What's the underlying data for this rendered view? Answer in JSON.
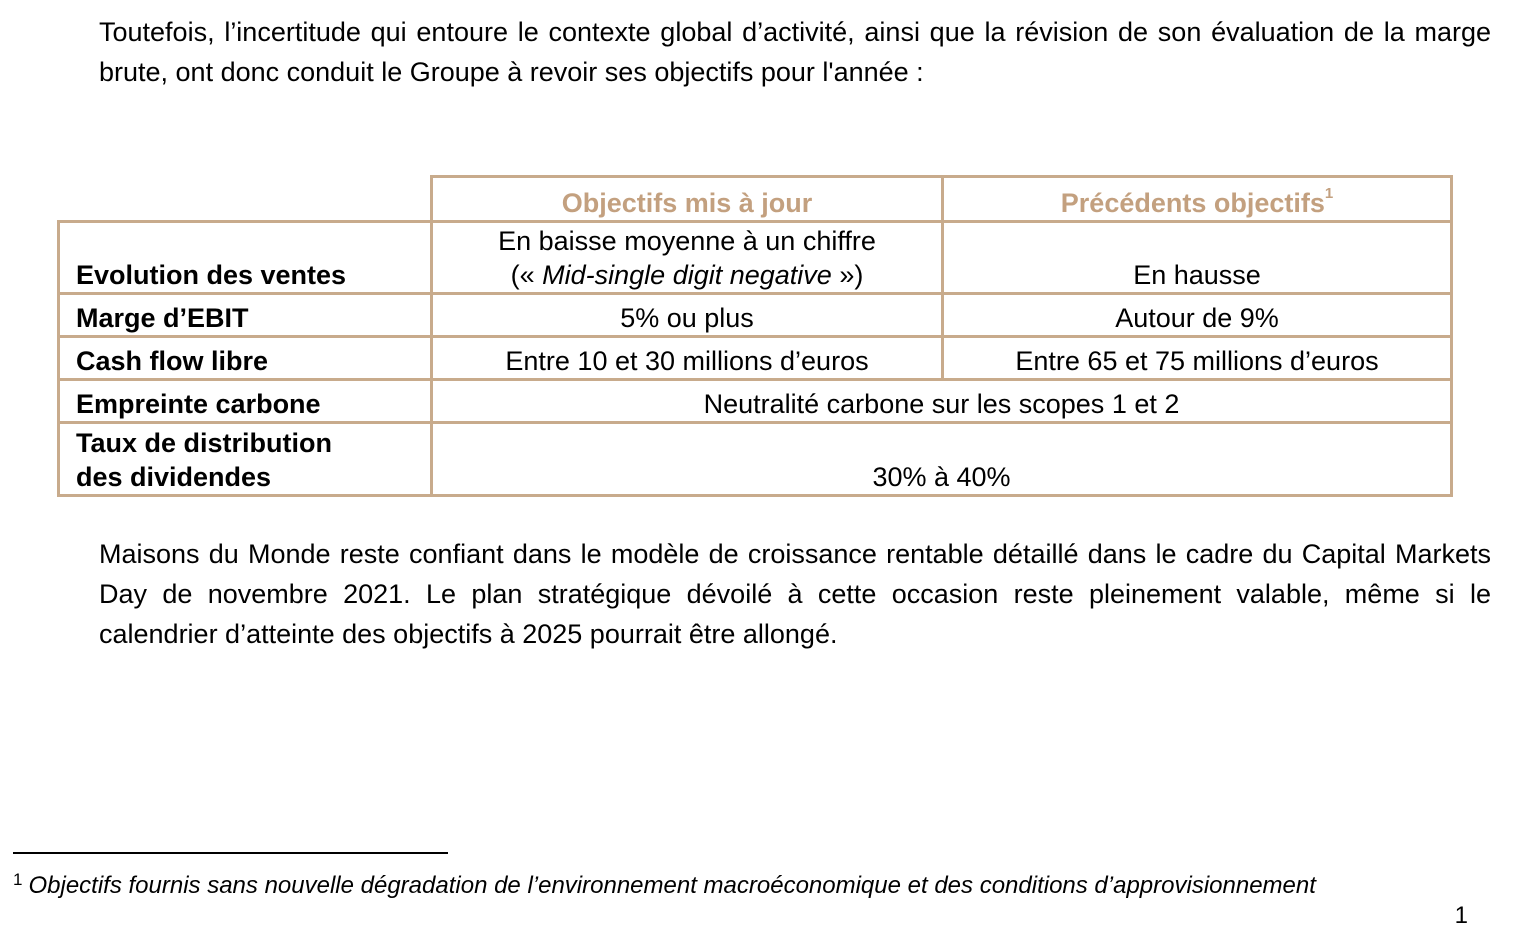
{
  "intro": {
    "text": "Toutefois, l’incertitude qui entoure le contexte global d’activité, ainsi que la révision de son évaluation de la marge brute, ont donc conduit le Groupe à revoir ses objectifs pour l'année :"
  },
  "table": {
    "headers": {
      "updated": "Objectifs mis à jour",
      "previous": "Précédents objectifs",
      "previous_footnote_ref": "1"
    },
    "rows": [
      {
        "label": "Evolution des ventes",
        "updated_line1": "En baisse moyenne à un chiffre",
        "updated_line2_open": "(« ",
        "updated_line2_italic": "Mid-single digit negative",
        "updated_line2_close": " »)",
        "previous": "En hausse"
      },
      {
        "label": "Marge d’EBIT",
        "updated": "5% ou plus",
        "previous": "Autour de 9%"
      },
      {
        "label": "Cash flow libre",
        "updated": "Entre 10 et 30 millions d’euros",
        "previous": "Entre 65 et 75 millions d’euros"
      },
      {
        "label": "Empreinte carbone",
        "merged": "Neutralité carbone sur les scopes 1 et 2"
      },
      {
        "label_line1": "Taux de distribution",
        "label_line2": "des dividendes",
        "merged": "30% à 40%"
      }
    ]
  },
  "outro": {
    "text": "Maisons du Monde reste confiant dans le modèle de croissance rentable détaillé dans le cadre du Capital Markets Day de novembre 2021. Le plan stratégique dévoilé à cette occasion reste pleinement valable, même si le calendrier d’atteinte des objectifs à 2025 pourrait être allongé."
  },
  "footnote": {
    "marker": "1",
    "text": "Objectifs fournis sans nouvelle dégradation de l’environnement macroéconomique et des conditions d’approvisionnement"
  },
  "page_number": "1",
  "colors": {
    "border": "#c8ab8c",
    "header_text": "#c3a07f",
    "body_text": "#000000"
  }
}
